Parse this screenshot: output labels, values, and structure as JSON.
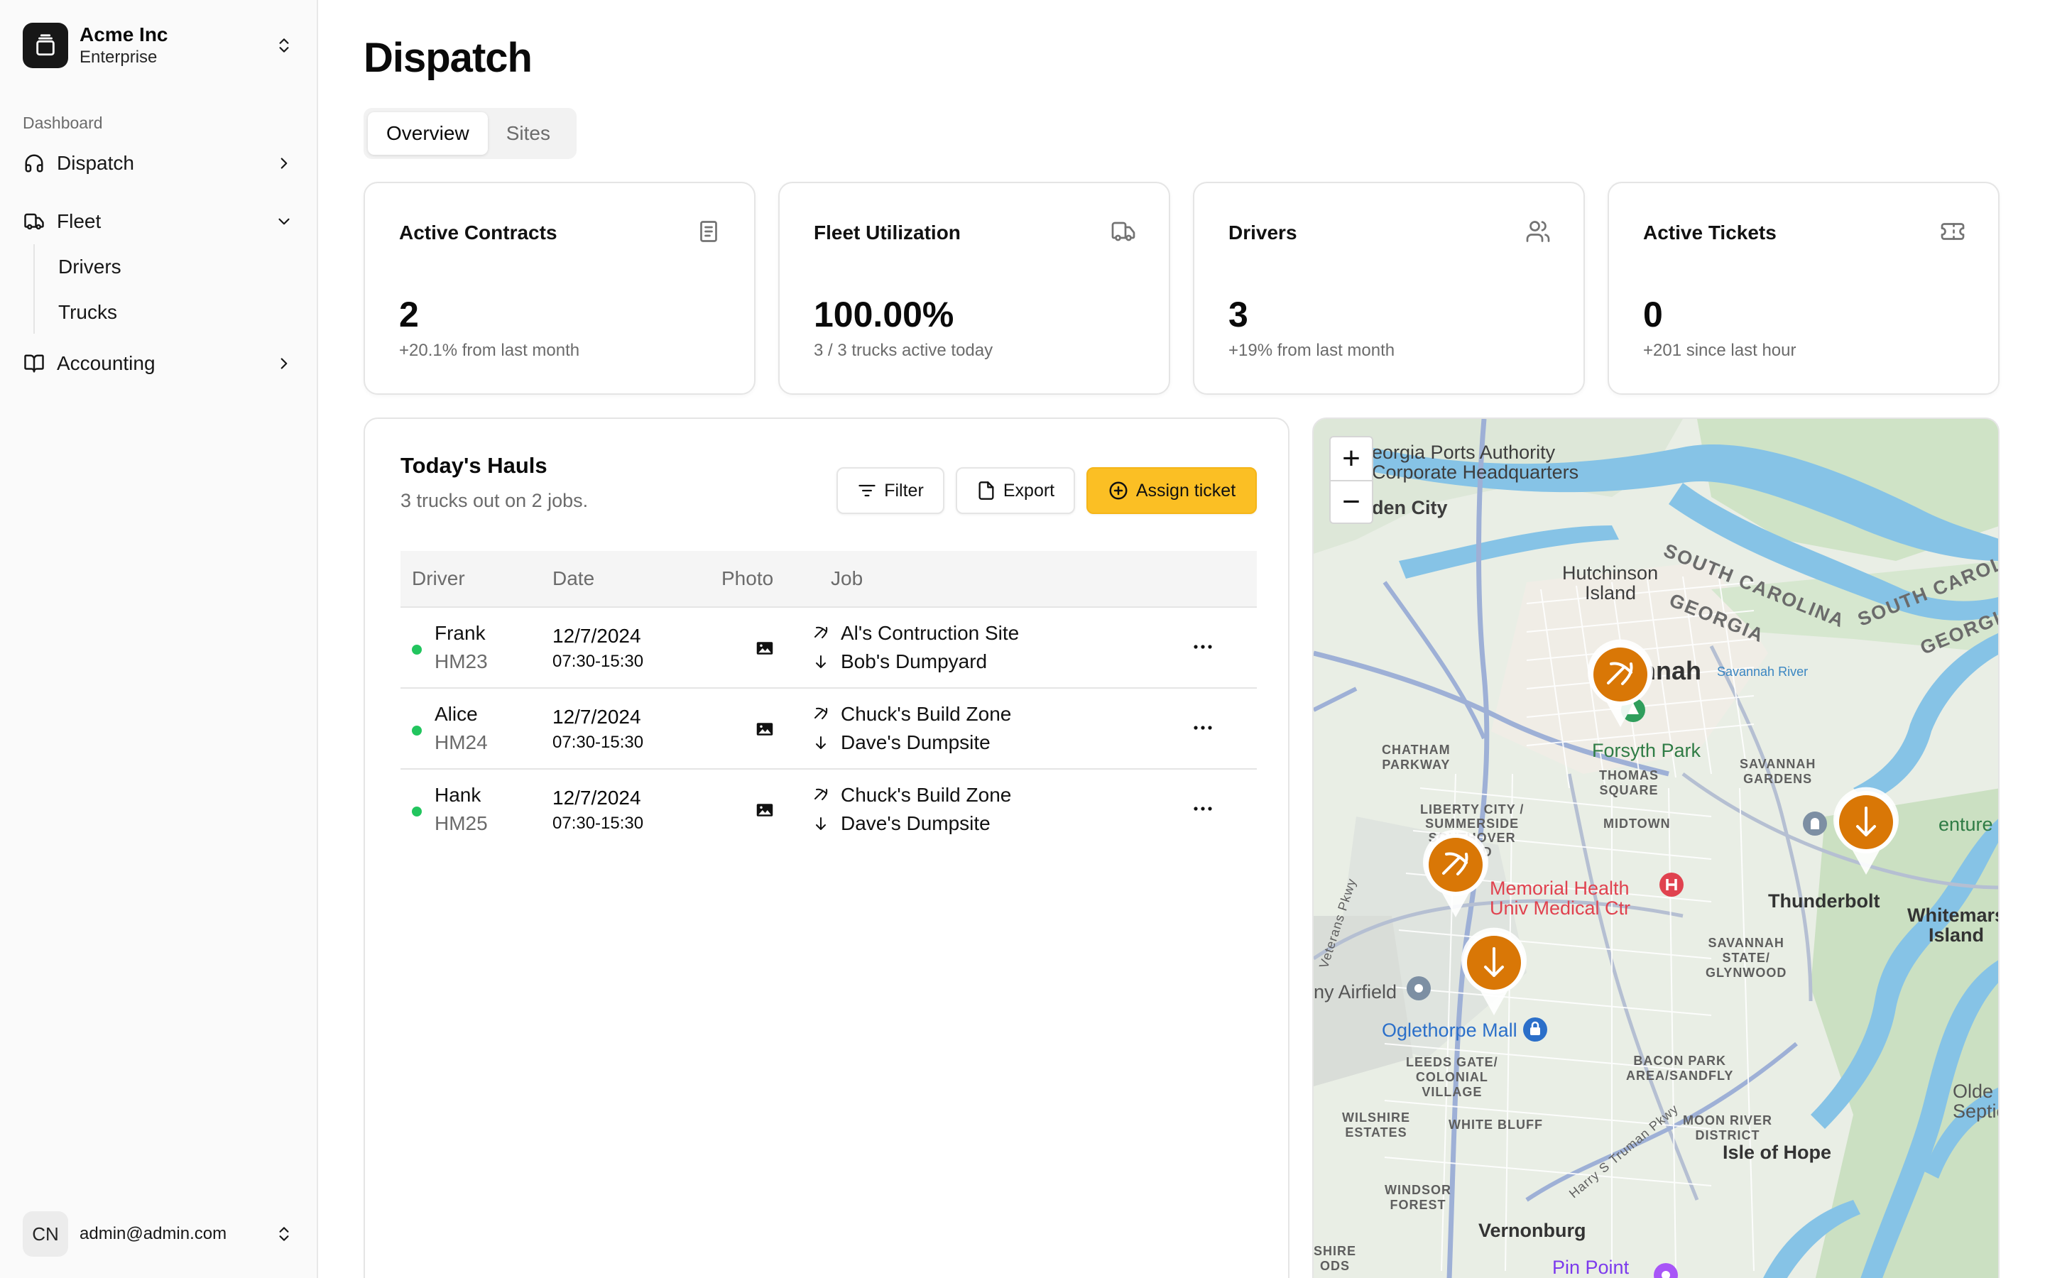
{
  "sidebar": {
    "org_name": "Acme Inc",
    "org_plan": "Enterprise",
    "section_label": "Dashboard",
    "items": [
      {
        "label": "Dispatch",
        "icon": "headset-icon"
      },
      {
        "label": "Fleet",
        "icon": "truck-icon"
      },
      {
        "label": "Accounting",
        "icon": "book-icon"
      }
    ],
    "fleet_subitems": [
      "Drivers",
      "Trucks"
    ],
    "user_initials": "CN",
    "user_email": "admin@admin.com"
  },
  "page": {
    "title": "Dispatch",
    "tabs": [
      "Overview",
      "Sites"
    ],
    "active_tab": "Overview"
  },
  "stats": [
    {
      "title": "Active Contracts",
      "value": "2",
      "sub": "+20.1% from last month",
      "icon": "document-icon"
    },
    {
      "title": "Fleet Utilization",
      "value": "100.00%",
      "sub": "3 / 3 trucks active today",
      "icon": "truck-icon"
    },
    {
      "title": "Drivers",
      "value": "3",
      "sub": "+19% from last month",
      "icon": "users-icon"
    },
    {
      "title": "Active Tickets",
      "value": "0",
      "sub": "+201 since last hour",
      "icon": "ticket-icon"
    }
  ],
  "hauls": {
    "title": "Today's Hauls",
    "subtitle": "3 trucks out on 2 jobs.",
    "filter_label": "Filter",
    "export_label": "Export",
    "assign_label": "Assign ticket",
    "columns": [
      "Driver",
      "Date",
      "Photo",
      "Job"
    ],
    "rows": [
      {
        "name": "Frank",
        "truck": "HM23",
        "date": "12/7/2024",
        "time": "07:30-15:30",
        "pickup": "Al's Contruction Site",
        "dropoff": "Bob's Dumpyard",
        "status_color": "#22c55e"
      },
      {
        "name": "Alice",
        "truck": "HM24",
        "date": "12/7/2024",
        "time": "07:30-15:30",
        "pickup": "Chuck's Build Zone",
        "dropoff": "Dave's Dumpsite",
        "status_color": "#22c55e"
      },
      {
        "name": "Hank",
        "truck": "HM25",
        "date": "12/7/2024",
        "time": "07:30-15:30",
        "pickup": "Chuck's Build Zone",
        "dropoff": "Dave's Dumpsite",
        "status_color": "#22c55e"
      }
    ]
  },
  "map": {
    "zoom_in": "+",
    "zoom_out": "−",
    "labels": {
      "georgia_ports": "eorgia Ports Authority",
      "corporate_hq": "Corporate Headquarters",
      "garden_city": "den City",
      "hutchinson": "Hutchinson",
      "island": "Island",
      "south_carolina_1": "SOUTH CAROLINA",
      "georgia_1": "GEORGIA",
      "south_carolina_2": "SOUTH CAROLINA",
      "georgia_2": "GEORGIA",
      "savannah": "nnah",
      "savannah_river": "Savannah River",
      "chatham_parkway": "CHATHAM\nPARKWAY",
      "forsyth_park": "Forsyth Park",
      "thomas_square": "THOMAS\nSQUARE",
      "savannah_gardens": "SAVANNAH\nGARDENS",
      "liberty_city": "LIBERTY CITY /\nSUMMERSIDE\nSOUTHOVER\nFIELD",
      "midtown": "MIDTOWN",
      "bonaventure": "enture Cem",
      "memorial_health": "Memorial Health",
      "univ_medical": "Univ Medical Ctr",
      "thunderbolt": "Thunderbolt",
      "whitemarsh": "Whitemars",
      "whitemarsh_island": "Island",
      "savannah_state": "SAVANNAH\nSTATE/\nGLYNWOOD",
      "airfield": "ny Airfield",
      "oglethorpe_mall": "Oglethorpe Mall",
      "leeds_gate": "LEEDS GATE/\nCOLONIAL\nVILLAGE",
      "bacon_park": "BACON PARK\nAREA/SANDFLY",
      "olde_septic": "Olde Sa",
      "septic": "Septic",
      "wilshire": "WILSHIRE\nESTATES",
      "white_bluff": "WHITE BLUFF",
      "moon_river": "MOON RIVER\nDISTRICT",
      "isle_of_hope": "Isle of Hope",
      "windsor_forest": "WINDSOR\nFOREST",
      "vernonburg": "Vernonburg",
      "pin_point": "Pin Point",
      "shire_ods": "SHIRE\nODS",
      "harry_truman": "Harry S Truman Pkwy",
      "veterans": "Veterans Pkwy"
    },
    "pins": [
      {
        "type": "pickup",
        "icon": "pickaxe-icon",
        "color": "#d97706"
      },
      {
        "type": "pickup",
        "icon": "pickaxe-icon",
        "color": "#d97706"
      },
      {
        "type": "dropoff",
        "icon": "arrow-down-icon",
        "color": "#d97706"
      },
      {
        "type": "dropoff",
        "icon": "arrow-down-icon",
        "color": "#d97706"
      }
    ]
  },
  "colors": {
    "accent": "#fbbf24",
    "status_active": "#22c55e",
    "pin": "#d97706"
  }
}
